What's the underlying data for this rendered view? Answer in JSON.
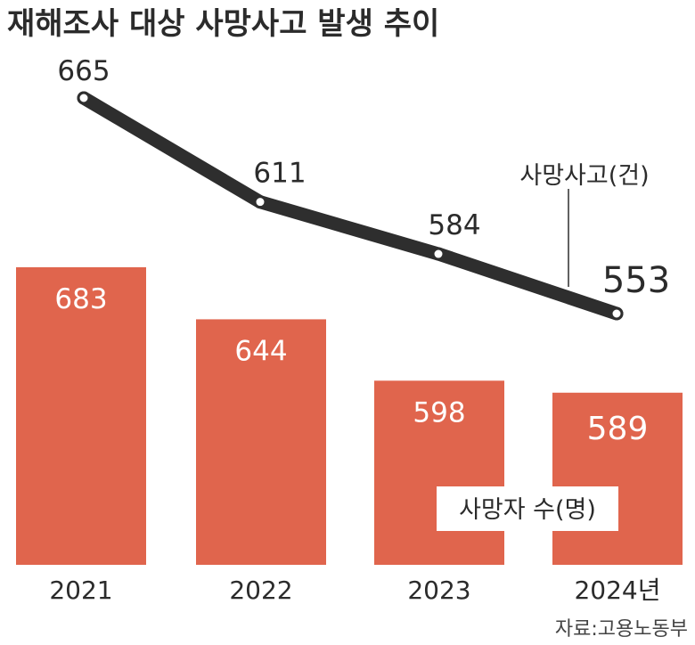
{
  "title": "재해조사 대상 사망사고 발생 추이",
  "source": "자료:고용노동부",
  "colors": {
    "bar": "#e0654d",
    "line": "#2e2e2e",
    "text": "#2b2b2b"
  },
  "chart_data": {
    "type": "bar",
    "title": "재해조사 대상 사망사고 발생 추이",
    "categories": [
      "2021",
      "2022",
      "2023",
      "2024년"
    ],
    "series": [
      {
        "name": "사망자 수(명)",
        "type": "bar",
        "values": [
          683,
          644,
          598,
          589
        ]
      },
      {
        "name": "사망사고(건)",
        "type": "line",
        "values": [
          665,
          611,
          584,
          553
        ]
      }
    ],
    "grid": false
  }
}
